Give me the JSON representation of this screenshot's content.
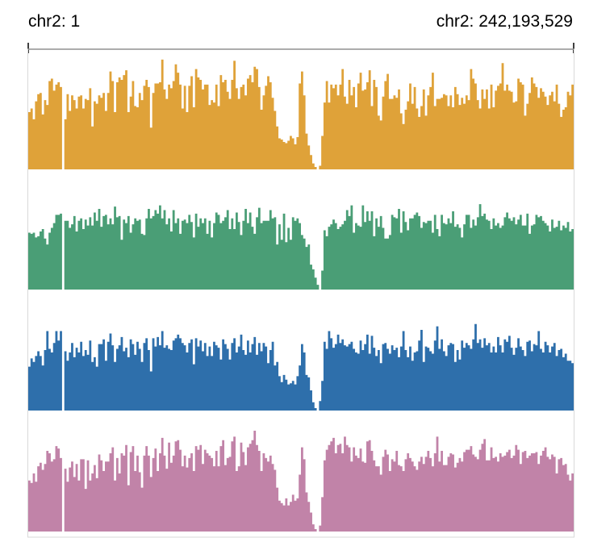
{
  "genome_browser": {
    "chrom_start_label": "chr2: 1",
    "chrom_end_label": "chr2: 242,193,529"
  },
  "chart_data": {
    "type": "area",
    "chrom": "chr2",
    "x_range": [
      1,
      242193529
    ],
    "bins": 240,
    "series": [
      {
        "color": "#dfa239",
        "values": [
          0.48,
          0.51,
          0.42,
          0.57,
          0.63,
          0.64,
          0.46,
          0.58,
          0.54,
          0.74,
          0.76,
          0.66,
          0.71,
          0.73,
          0.69,
          0.0,
          0.42,
          0.63,
          0.49,
          0.62,
          0.58,
          0.51,
          0.61,
          0.62,
          0.51,
          0.59,
          0.58,
          0.68,
          0.36,
          0.57,
          0.55,
          0.62,
          0.6,
          0.64,
          0.49,
          0.64,
          0.82,
          0.74,
          0.48,
          0.73,
          0.77,
          0.75,
          0.79,
          0.83,
          0.48,
          0.61,
          0.74,
          0.53,
          0.52,
          0.64,
          0.58,
          0.7,
          0.75,
          0.69,
          0.35,
          0.64,
          0.72,
          0.72,
          0.73,
          0.92,
          0.67,
          0.59,
          0.71,
          0.68,
          0.74,
          0.88,
          0.81,
          0.71,
          0.51,
          0.7,
          0.48,
          0.7,
          0.78,
          0.52,
          0.84,
          0.77,
          0.75,
          0.67,
          0.71,
          0.71,
          0.54,
          0.58,
          0.56,
          0.71,
          0.53,
          0.79,
          0.73,
          0.75,
          0.65,
          0.59,
          0.75,
          0.91,
          0.68,
          0.59,
          0.69,
          0.71,
          0.62,
          0.76,
          0.79,
          0.73,
          0.86,
          0.84,
          0.69,
          0.5,
          0.62,
          0.7,
          0.78,
          0.73,
          0.6,
          0.49,
          0.36,
          0.26,
          0.25,
          0.23,
          0.22,
          0.24,
          0.28,
          0.26,
          0.21,
          0.27,
          0.72,
          0.82,
          0.62,
          0.3,
          0.2,
          0.12,
          0.05,
          0.02,
          0.0,
          0.03,
          0.28,
          0.56,
          0.74,
          0.56,
          0.71,
          0.68,
          0.71,
          0.62,
          0.71,
          0.84,
          0.61,
          0.55,
          0.75,
          0.62,
          0.69,
          0.52,
          0.72,
          0.81,
          0.66,
          0.67,
          0.73,
          0.83,
          0.53,
          0.75,
          0.69,
          0.45,
          0.41,
          0.61,
          0.74,
          0.8,
          0.59,
          0.59,
          0.62,
          0.6,
          0.67,
          0.47,
          0.38,
          0.5,
          0.57,
          0.72,
          0.55,
          0.69,
          0.51,
          0.44,
          0.53,
          0.67,
          0.45,
          0.62,
          0.69,
          0.81,
          0.53,
          0.59,
          0.59,
          0.6,
          0.63,
          0.62,
          0.53,
          0.62,
          0.52,
          0.69,
          0.63,
          0.54,
          0.6,
          0.55,
          0.62,
          0.58,
          0.84,
          0.76,
          0.72,
          0.58,
          0.51,
          0.67,
          0.59,
          0.67,
          0.51,
          0.71,
          0.52,
          0.66,
          0.7,
          0.72,
          0.89,
          0.66,
          0.71,
          0.66,
          0.65,
          0.56,
          0.57,
          0.76,
          0.73,
          0.71,
          0.45,
          0.55,
          0.64,
          0.77,
          0.72,
          0.69,
          0.6,
          0.68,
          0.65,
          0.61,
          0.54,
          0.62,
          0.65,
          0.57,
          0.71,
          0.55,
          0.44,
          0.5,
          0.52,
          0.65,
          0.62,
          0.71
        ]
      },
      {
        "color": "#4a9e76",
        "values": [
          0.48,
          0.47,
          0.48,
          0.44,
          0.45,
          0.49,
          0.51,
          0.43,
          0.38,
          0.48,
          0.52,
          0.56,
          0.63,
          0.63,
          0.64,
          0.0,
          0.58,
          0.58,
          0.52,
          0.55,
          0.62,
          0.49,
          0.58,
          0.6,
          0.51,
          0.59,
          0.54,
          0.61,
          0.54,
          0.65,
          0.58,
          0.68,
          0.53,
          0.62,
          0.63,
          0.55,
          0.6,
          0.55,
          0.7,
          0.61,
          0.62,
          0.42,
          0.59,
          0.56,
          0.62,
          0.48,
          0.55,
          0.6,
          0.58,
          0.59,
          0.47,
          0.46,
          0.6,
          0.68,
          0.6,
          0.62,
          0.67,
          0.64,
          0.71,
          0.6,
          0.67,
          0.55,
          0.6,
          0.49,
          0.67,
          0.56,
          0.6,
          0.47,
          0.58,
          0.59,
          0.56,
          0.63,
          0.57,
          0.44,
          0.64,
          0.53,
          0.6,
          0.56,
          0.6,
          0.47,
          0.58,
          0.44,
          0.56,
          0.65,
          0.63,
          0.56,
          0.58,
          0.61,
          0.67,
          0.51,
          0.6,
          0.51,
          0.65,
          0.57,
          0.46,
          0.58,
          0.68,
          0.56,
          0.65,
          0.53,
          0.47,
          0.61,
          0.69,
          0.56,
          0.58,
          0.58,
          0.58,
          0.67,
          0.6,
          0.61,
          0.38,
          0.55,
          0.42,
          0.64,
          0.4,
          0.52,
          0.42,
          0.61,
          0.58,
          0.6,
          0.56,
          0.46,
          0.43,
          0.36,
          0.38,
          0.21,
          0.17,
          0.1,
          0.04,
          0.0,
          0.16,
          0.5,
          0.45,
          0.53,
          0.55,
          0.59,
          0.56,
          0.51,
          0.53,
          0.55,
          0.58,
          0.67,
          0.62,
          0.71,
          0.48,
          0.56,
          0.54,
          0.53,
          0.71,
          0.57,
          0.66,
          0.58,
          0.66,
          0.45,
          0.6,
          0.53,
          0.62,
          0.52,
          0.43,
          0.43,
          0.46,
          0.63,
          0.61,
          0.6,
          0.68,
          0.48,
          0.66,
          0.57,
          0.5,
          0.6,
          0.6,
          0.63,
          0.65,
          0.62,
          0.52,
          0.57,
          0.56,
          0.58,
          0.58,
          0.48,
          0.63,
          0.51,
          0.45,
          0.63,
          0.56,
          0.55,
          0.6,
          0.56,
          0.66,
          0.53,
          0.55,
          0.52,
          0.44,
          0.55,
          0.63,
          0.63,
          0.52,
          0.59,
          0.54,
          0.61,
          0.72,
          0.62,
          0.64,
          0.59,
          0.58,
          0.51,
          0.6,
          0.54,
          0.56,
          0.52,
          0.54,
          0.61,
          0.65,
          0.6,
          0.58,
          0.61,
          0.55,
          0.59,
          0.63,
          0.54,
          0.54,
          0.64,
          0.47,
          0.54,
          0.55,
          0.63,
          0.61,
          0.62,
          0.58,
          0.56,
          0.54,
          0.49,
          0.59,
          0.52,
          0.53,
          0.58,
          0.5,
          0.54,
          0.52,
          0.57,
          0.49,
          0.51
        ]
      },
      {
        "color": "#2e6fab",
        "values": [
          0.37,
          0.44,
          0.41,
          0.46,
          0.5,
          0.46,
          0.38,
          0.51,
          0.67,
          0.52,
          0.49,
          0.57,
          0.67,
          0.59,
          0.67,
          0.0,
          0.5,
          0.42,
          0.49,
          0.57,
          0.45,
          0.53,
          0.49,
          0.58,
          0.46,
          0.51,
          0.47,
          0.59,
          0.41,
          0.45,
          0.37,
          0.56,
          0.56,
          0.6,
          0.42,
          0.58,
          0.65,
          0.55,
          0.41,
          0.52,
          0.55,
          0.62,
          0.5,
          0.53,
          0.45,
          0.6,
          0.56,
          0.47,
          0.58,
          0.52,
          0.41,
          0.57,
          0.61,
          0.51,
          0.33,
          0.61,
          0.54,
          0.62,
          0.55,
          0.67,
          0.53,
          0.55,
          0.52,
          0.51,
          0.59,
          0.61,
          0.64,
          0.61,
          0.57,
          0.55,
          0.49,
          0.57,
          0.6,
          0.39,
          0.61,
          0.54,
          0.59,
          0.5,
          0.57,
          0.46,
          0.54,
          0.46,
          0.58,
          0.55,
          0.53,
          0.43,
          0.6,
          0.56,
          0.52,
          0.43,
          0.57,
          0.61,
          0.49,
          0.54,
          0.64,
          0.51,
          0.47,
          0.59,
          0.49,
          0.56,
          0.62,
          0.47,
          0.57,
          0.5,
          0.57,
          0.54,
          0.4,
          0.51,
          0.58,
          0.38,
          0.41,
          0.29,
          0.24,
          0.3,
          0.26,
          0.22,
          0.23,
          0.25,
          0.22,
          0.29,
          0.38,
          0.56,
          0.49,
          0.3,
          0.28,
          0.17,
          0.07,
          0.02,
          0.0,
          0.08,
          0.25,
          0.58,
          0.52,
          0.67,
          0.61,
          0.53,
          0.56,
          0.64,
          0.57,
          0.6,
          0.55,
          0.54,
          0.56,
          0.58,
          0.52,
          0.49,
          0.48,
          0.59,
          0.51,
          0.56,
          0.64,
          0.48,
          0.63,
          0.53,
          0.46,
          0.51,
          0.4,
          0.56,
          0.57,
          0.52,
          0.48,
          0.55,
          0.51,
          0.53,
          0.45,
          0.54,
          0.67,
          0.51,
          0.45,
          0.54,
          0.42,
          0.49,
          0.5,
          0.59,
          0.68,
          0.41,
          0.54,
          0.53,
          0.5,
          0.48,
          0.59,
          0.71,
          0.52,
          0.6,
          0.5,
          0.46,
          0.55,
          0.57,
          0.56,
          0.41,
          0.51,
          0.43,
          0.59,
          0.53,
          0.57,
          0.55,
          0.52,
          0.6,
          0.73,
          0.57,
          0.6,
          0.53,
          0.61,
          0.55,
          0.57,
          0.49,
          0.54,
          0.49,
          0.62,
          0.55,
          0.49,
          0.6,
          0.58,
          0.63,
          0.53,
          0.47,
          0.53,
          0.61,
          0.54,
          0.51,
          0.46,
          0.58,
          0.59,
          0.5,
          0.56,
          0.55,
          0.67,
          0.52,
          0.49,
          0.58,
          0.55,
          0.49,
          0.54,
          0.57,
          0.46,
          0.51,
          0.52,
          0.45,
          0.48,
          0.42,
          0.42,
          0.4
        ]
      },
      {
        "color": "#c183a8",
        "values": [
          0.43,
          0.41,
          0.49,
          0.42,
          0.55,
          0.58,
          0.52,
          0.57,
          0.68,
          0.66,
          0.59,
          0.61,
          0.72,
          0.7,
          0.62,
          0.0,
          0.53,
          0.42,
          0.54,
          0.59,
          0.46,
          0.57,
          0.43,
          0.61,
          0.61,
          0.36,
          0.6,
          0.43,
          0.49,
          0.56,
          0.45,
          0.65,
          0.6,
          0.51,
          0.59,
          0.59,
          0.66,
          0.71,
          0.43,
          0.62,
          0.49,
          0.66,
          0.64,
          0.73,
          0.39,
          0.67,
          0.72,
          0.51,
          0.64,
          0.5,
          0.37,
          0.64,
          0.72,
          0.64,
          0.46,
          0.62,
          0.7,
          0.51,
          0.66,
          0.79,
          0.64,
          0.53,
          0.75,
          0.58,
          0.64,
          0.76,
          0.77,
          0.69,
          0.55,
          0.64,
          0.54,
          0.62,
          0.66,
          0.51,
          0.72,
          0.69,
          0.73,
          0.57,
          0.69,
          0.66,
          0.64,
          0.62,
          0.55,
          0.68,
          0.55,
          0.72,
          0.77,
          0.56,
          0.62,
          0.63,
          0.76,
          0.8,
          0.51,
          0.55,
          0.75,
          0.67,
          0.56,
          0.71,
          0.74,
          0.77,
          0.85,
          0.73,
          0.68,
          0.51,
          0.66,
          0.62,
          0.59,
          0.64,
          0.57,
          0.52,
          0.37,
          0.26,
          0.24,
          0.22,
          0.28,
          0.22,
          0.25,
          0.31,
          0.26,
          0.28,
          0.48,
          0.71,
          0.61,
          0.33,
          0.25,
          0.16,
          0.06,
          0.02,
          0.0,
          0.05,
          0.29,
          0.6,
          0.69,
          0.73,
          0.76,
          0.79,
          0.66,
          0.73,
          0.74,
          0.66,
          0.8,
          0.73,
          0.71,
          0.59,
          0.71,
          0.64,
          0.62,
          0.7,
          0.59,
          0.58,
          0.76,
          0.77,
          0.68,
          0.6,
          0.55,
          0.55,
          0.48,
          0.63,
          0.69,
          0.65,
          0.51,
          0.61,
          0.59,
          0.68,
          0.56,
          0.55,
          0.51,
          0.61,
          0.66,
          0.62,
          0.59,
          0.55,
          0.52,
          0.59,
          0.63,
          0.57,
          0.63,
          0.68,
          0.62,
          0.55,
          0.66,
          0.8,
          0.59,
          0.68,
          0.56,
          0.56,
          0.63,
          0.66,
          0.65,
          0.54,
          0.58,
          0.62,
          0.59,
          0.67,
          0.69,
          0.69,
          0.72,
          0.65,
          0.63,
          0.61,
          0.69,
          0.74,
          0.78,
          0.6,
          0.6,
          0.71,
          0.62,
          0.63,
          0.59,
          0.66,
          0.63,
          0.64,
          0.67,
          0.69,
          0.62,
          0.64,
          0.73,
          0.69,
          0.57,
          0.67,
          0.68,
          0.62,
          0.64,
          0.66,
          0.66,
          0.67,
          0.57,
          0.64,
          0.68,
          0.71,
          0.63,
          0.61,
          0.65,
          0.63,
          0.49,
          0.61,
          0.62,
          0.56,
          0.57,
          0.48,
          0.43,
          0.49
        ]
      }
    ]
  }
}
